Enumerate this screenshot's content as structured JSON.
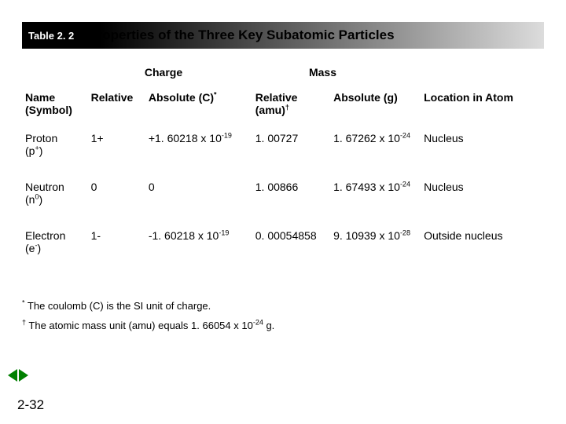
{
  "title": {
    "table_num": "Table 2. 2",
    "text": "Properties of the Three Key Subatomic Particles",
    "gradient_start": "#000000",
    "gradient_end": "#dcdcdc",
    "table_num_color": "#ffffff",
    "title_color": "#000000",
    "title_fontsize": 17
  },
  "groups": {
    "charge": "Charge",
    "mass": "Mass"
  },
  "columns": {
    "name": "Name (Symbol)",
    "rel_charge": "Relative",
    "abs_charge_pre": "Absolute (C)",
    "abs_charge_sup": "*",
    "rel_mass_pre": "Relative (amu)",
    "rel_mass_sup": "†",
    "abs_mass": "Absolute (g)",
    "location": "Location in Atom"
  },
  "rows": [
    {
      "name": "Proton",
      "sym_pre": "(p",
      "sym_sup": "+",
      "sym_post": ")",
      "rel_c": "1+",
      "abs_c_pre": "+1. 60218 x 10",
      "abs_c_sup": "-19",
      "rel_m": "1. 00727",
      "abs_m_pre": "1. 67262 x 10",
      "abs_m_sup": "-24",
      "loc": "Nucleus"
    },
    {
      "name": "Neutron",
      "sym_pre": "(n",
      "sym_sup": "0",
      "sym_post": ")",
      "rel_c": "0",
      "abs_c_pre": "0",
      "abs_c_sup": "",
      "rel_m": "1. 00866",
      "abs_m_pre": "1. 67493 x 10",
      "abs_m_sup": "-24",
      "loc": "Nucleus"
    },
    {
      "name": "Electron",
      "sym_pre": "(e",
      "sym_sup": "-",
      "sym_post": ")",
      "rel_c": "1-",
      "abs_c_pre": "-1. 60218 x 10",
      "abs_c_sup": "-19",
      "rel_m": "0. 00054858",
      "abs_m_pre": "9. 10939 x 10",
      "abs_m_sup": "-28",
      "loc": "Outside nucleus"
    }
  ],
  "footnotes": {
    "f1_sup": "*",
    "f1_text": " The coulomb (C) is the SI unit of charge.",
    "f2_sup": "†",
    "f2_pre": " The atomic mass unit (amu) equals 1. 66054 x 10",
    "f2_exp": "-24",
    "f2_post": " g."
  },
  "page_number": "2-32",
  "nav_color": "#008000",
  "background_color": "#ffffff"
}
